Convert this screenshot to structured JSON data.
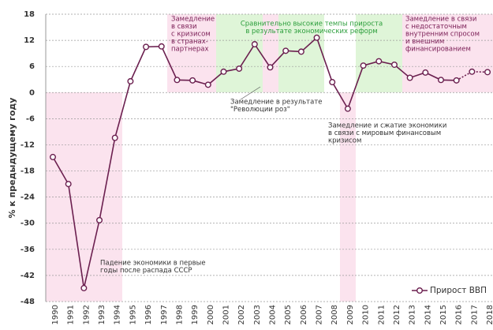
{
  "chart_data": {
    "type": "line",
    "y_label": "% к предыдущему году",
    "categories": [
      "1990",
      "1991",
      "1992",
      "1993",
      "1994",
      "1995",
      "1996",
      "1997",
      "1998",
      "1999",
      "2000",
      "2001",
      "2002",
      "2003",
      "2004",
      "2005",
      "2006",
      "2007",
      "2008",
      "2009",
      "2010",
      "2011",
      "2012",
      "2013",
      "2014",
      "2015",
      "2016",
      "2017",
      "2018"
    ],
    "series": [
      {
        "name": "Прирост ВВП",
        "color": "#6b1f4f",
        "values": [
          -14.8,
          -21,
          -44.9,
          -29.3,
          -10.4,
          2.6,
          10.5,
          10.6,
          2.9,
          2.8,
          1.8,
          4.8,
          5.5,
          11.1,
          5.8,
          9.6,
          9.4,
          12.6,
          2.4,
          -3.7,
          6.2,
          7.2,
          6.4,
          3.4,
          4.6,
          2.9,
          2.8,
          4.8,
          4.7
        ]
      }
    ],
    "dashed_after": "2016",
    "ylim": [
      -48,
      18
    ],
    "yticks": [
      18,
      12,
      6,
      0,
      -6,
      -12,
      -18,
      -24,
      -30,
      -36,
      -42,
      -48
    ],
    "grid": true,
    "legend": "bottom-right",
    "annotations": [
      {
        "lines": [
          "Замедление",
          "в связи",
          "с кризисом",
          "в странах-",
          "партнерах"
        ],
        "color": "#7a1d55"
      },
      {
        "lines": [
          "Сравнительно высокие темпы прироста",
          "в результате экономических реформ"
        ],
        "color": "#2a9d3a"
      },
      {
        "lines": [
          "Замедление в связи",
          "с недостаточным",
          "внутренним спросом",
          "и внешним",
          "финансированием"
        ],
        "color": "#7a1d55"
      },
      {
        "lines": [
          "Замедление в результате",
          "\"Революции роз\""
        ],
        "color": "#333333"
      },
      {
        "lines": [
          "Замедление и сжатие экономики",
          "в связи с мировым финансовым",
          "кризисом"
        ],
        "color": "#333333"
      },
      {
        "lines": [
          "Падение экономики в первые",
          "годы после распада СССР"
        ],
        "color": "#333333"
      }
    ]
  }
}
